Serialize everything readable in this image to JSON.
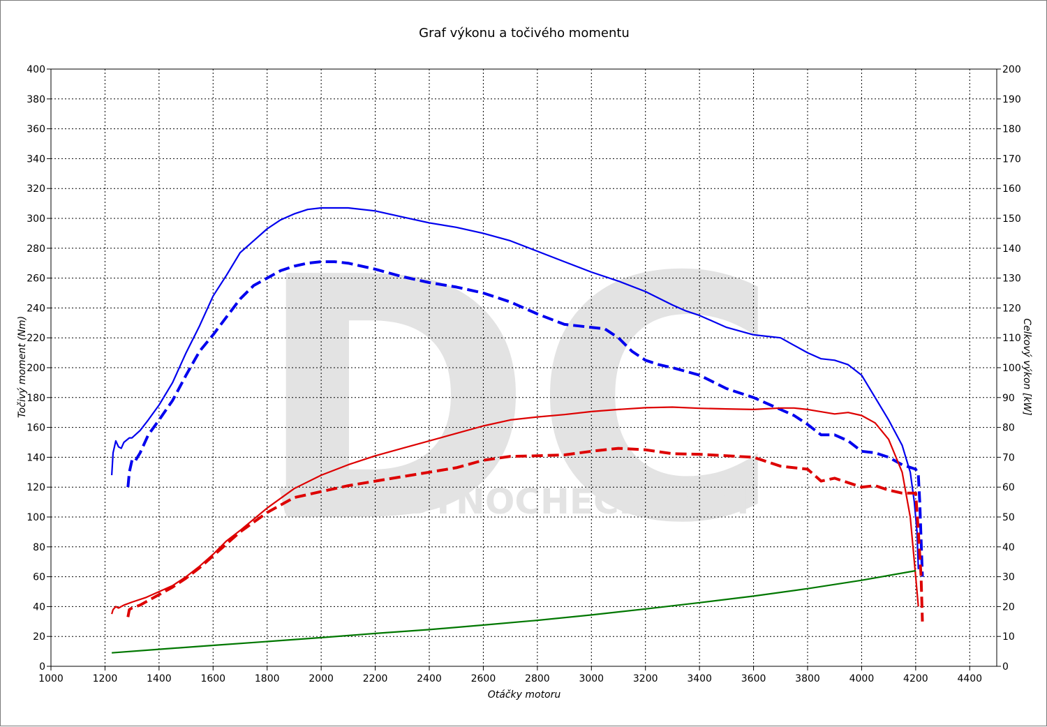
{
  "chart_data": {
    "type": "line",
    "title": "Graf výkonu a točivého momentu",
    "xlabel": "Otáčky motoru",
    "ylabel_left": "Točivý moment (Nm)",
    "ylabel_right": "Celkový výkon [kW]",
    "xlim": [
      1000,
      4500
    ],
    "ylim_left": [
      0,
      400
    ],
    "ylim_right": [
      0,
      200
    ],
    "x_ticks": [
      1000,
      1200,
      1400,
      1600,
      1800,
      2000,
      2200,
      2400,
      2600,
      2800,
      3000,
      3200,
      3400,
      3600,
      3800,
      4000,
      4200,
      4400
    ],
    "y_ticks_left": [
      0,
      20,
      40,
      60,
      80,
      100,
      120,
      140,
      160,
      180,
      200,
      220,
      240,
      260,
      280,
      300,
      320,
      340,
      360,
      380,
      400
    ],
    "y_ticks_right": [
      0,
      10,
      20,
      30,
      40,
      50,
      60,
      70,
      80,
      90,
      100,
      110,
      120,
      130,
      140,
      150,
      160,
      170,
      180,
      190,
      200
    ],
    "grid": true,
    "watermark": {
      "logo": "DC",
      "text": "WWW.DYNOCHECK.COM"
    },
    "series": [
      {
        "color": "#0000ee",
        "style": "solid",
        "axis": "left",
        "x": [
          1225,
          1230,
          1240,
          1250,
          1260,
          1270,
          1290,
          1300,
          1330,
          1360,
          1400,
          1450,
          1500,
          1550,
          1600,
          1650,
          1700,
          1750,
          1800,
          1850,
          1900,
          1950,
          2000,
          2050,
          2100,
          2200,
          2300,
          2400,
          2500,
          2600,
          2700,
          2800,
          2900,
          3000,
          3100,
          3200,
          3300,
          3350,
          3400,
          3500,
          3600,
          3700,
          3750,
          3800,
          3850,
          3900,
          3950,
          4000,
          4050,
          4100,
          4150,
          4180,
          4195,
          4205,
          4210
        ],
        "y": [
          128,
          143,
          151,
          147,
          146,
          150,
          153,
          153,
          158,
          165,
          175,
          190,
          210,
          228,
          248,
          262,
          277,
          285,
          293,
          299,
          303,
          306,
          307,
          307,
          307,
          305,
          301,
          297,
          294,
          290,
          285,
          278,
          271,
          264,
          258,
          251,
          242,
          238,
          235,
          227,
          222,
          220,
          215,
          210,
          206,
          205,
          202,
          195,
          180,
          165,
          148,
          130,
          110,
          90,
          65
        ]
      },
      {
        "color": "#0000ee",
        "style": "dashed",
        "axis": "left",
        "x": [
          1285,
          1290,
          1300,
          1310,
          1330,
          1360,
          1400,
          1450,
          1500,
          1550,
          1600,
          1650,
          1700,
          1750,
          1800,
          1850,
          1900,
          1950,
          2000,
          2050,
          2100,
          2200,
          2300,
          2400,
          2500,
          2600,
          2700,
          2800,
          2900,
          3000,
          3050,
          3100,
          3150,
          3200,
          3250,
          3300,
          3400,
          3500,
          3600,
          3700,
          3750,
          3800,
          3850,
          3900,
          3950,
          4000,
          4050,
          4100,
          4150,
          4200,
          4210,
          4215,
          4220,
          4225
        ],
        "y": [
          120,
          130,
          138,
          137,
          143,
          155,
          165,
          178,
          195,
          211,
          222,
          234,
          246,
          255,
          260,
          265,
          268,
          270,
          271,
          271,
          270,
          266,
          261,
          257,
          254,
          250,
          244,
          236,
          229,
          227,
          226,
          220,
          211,
          205,
          202,
          200,
          195,
          186,
          180,
          172,
          168,
          162,
          155,
          155,
          151,
          144,
          143,
          140,
          135,
          132,
          128,
          110,
          85,
          60
        ]
      },
      {
        "color": "#dd0000",
        "style": "solid",
        "axis": "right",
        "x": [
          1225,
          1230,
          1240,
          1250,
          1260,
          1270,
          1300,
          1350,
          1400,
          1450,
          1500,
          1550,
          1600,
          1650,
          1700,
          1800,
          1900,
          2000,
          2100,
          2200,
          2300,
          2400,
          2500,
          2600,
          2700,
          2800,
          2900,
          3000,
          3100,
          3200,
          3300,
          3400,
          3500,
          3600,
          3700,
          3750,
          3800,
          3900,
          3950,
          4000,
          4050,
          4100,
          4150,
          4180,
          4200,
          4210
        ],
        "y": [
          17.5,
          19,
          20,
          19.5,
          20,
          20.5,
          21.5,
          23,
          25,
          27,
          30,
          33.5,
          37.5,
          42,
          45.5,
          53,
          59.5,
          64,
          67.5,
          70.5,
          73,
          75.5,
          78,
          80.5,
          82.5,
          83.5,
          84.3,
          85.3,
          86,
          86.6,
          86.8,
          86.4,
          86.2,
          86,
          86.5,
          86.5,
          86,
          84.5,
          85,
          84,
          81.5,
          76,
          65,
          50,
          30,
          20
        ]
      },
      {
        "color": "#dd0000",
        "style": "dashed",
        "axis": "right",
        "x": [
          1285,
          1290,
          1300,
          1330,
          1360,
          1400,
          1450,
          1500,
          1550,
          1600,
          1650,
          1700,
          1800,
          1900,
          2000,
          2100,
          2200,
          2300,
          2400,
          2500,
          2600,
          2700,
          2800,
          2900,
          3000,
          3100,
          3200,
          3300,
          3400,
          3500,
          3600,
          3700,
          3750,
          3800,
          3850,
          3900,
          3950,
          4000,
          4050,
          4100,
          4150,
          4200,
          4210,
          4220,
          4225
        ],
        "y": [
          16.5,
          19,
          19.5,
          20.5,
          22,
          24,
          26.5,
          29.5,
          33,
          37,
          41,
          45,
          51.5,
          56.5,
          58.5,
          60.5,
          62,
          63.5,
          65,
          66.5,
          69,
          70.3,
          70.5,
          70.8,
          72,
          73,
          72.5,
          71.2,
          71,
          70.5,
          70,
          67,
          66.5,
          66,
          62,
          63,
          61.5,
          60,
          60.5,
          59,
          58,
          58,
          45,
          30,
          15
        ]
      },
      {
        "color": "#007700",
        "style": "solid",
        "axis": "right",
        "x": [
          1225,
          1400,
          1600,
          1800,
          2000,
          2200,
          2400,
          2600,
          2800,
          3000,
          3200,
          3400,
          3600,
          3800,
          4000,
          4200
        ],
        "y": [
          4.5,
          5.7,
          7,
          8.3,
          9.6,
          11,
          12.3,
          13.8,
          15.4,
          17.2,
          19.2,
          21.3,
          23.5,
          26,
          28.8,
          32
        ]
      }
    ]
  }
}
